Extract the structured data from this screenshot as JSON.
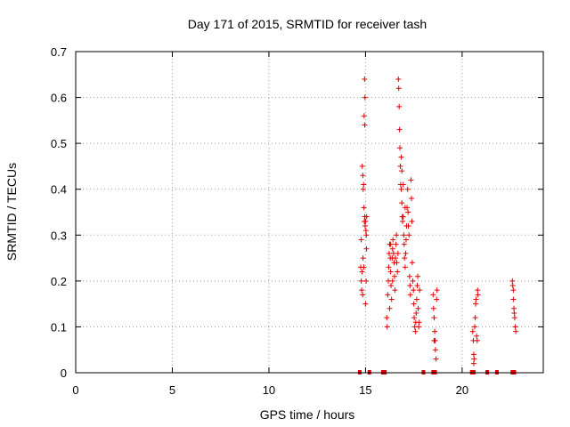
{
  "chart_data": {
    "type": "scatter",
    "title": "Day 171 of 2015, SRMTID for receiver tash",
    "xlabel": "GPS time / hours",
    "ylabel": "SRMTID / TECUs",
    "xlim": [
      0,
      24.2
    ],
    "ylim": [
      0,
      0.7
    ],
    "x_ticks": [
      0,
      5,
      10,
      15,
      20
    ],
    "x_tick_labels": [
      "0",
      "5",
      "10",
      "15",
      "20"
    ],
    "y_ticks": [
      0,
      0.1,
      0.2,
      0.3,
      0.4,
      0.5,
      0.6,
      0.7
    ],
    "y_tick_labels": [
      "0",
      "0.1",
      "0.2",
      "0.3",
      "0.4",
      "0.5",
      "0.6",
      "0.7"
    ],
    "grid": true,
    "marker": "+",
    "color": "#e00000",
    "series": [
      {
        "name": "SRMTID",
        "points": [
          [
            14.75,
            0.23
          ],
          [
            14.78,
            0.2
          ],
          [
            14.8,
            0.18
          ],
          [
            14.82,
            0.22
          ],
          [
            14.85,
            0.17
          ],
          [
            14.87,
            0.25
          ],
          [
            14.78,
            0.29
          ],
          [
            14.83,
            0.45
          ],
          [
            14.86,
            0.43
          ],
          [
            14.88,
            0.4
          ],
          [
            14.9,
            0.41
          ],
          [
            14.92,
            0.36
          ],
          [
            14.94,
            0.33
          ],
          [
            14.96,
            0.34
          ],
          [
            14.98,
            0.32
          ],
          [
            15.0,
            0.33
          ],
          [
            15.02,
            0.31
          ],
          [
            15.04,
            0.3
          ],
          [
            15.06,
            0.34
          ],
          [
            14.95,
            0.64
          ],
          [
            14.97,
            0.6
          ],
          [
            14.93,
            0.56
          ],
          [
            14.96,
            0.54
          ],
          [
            15.0,
            0.15
          ],
          [
            15.03,
            0.2
          ],
          [
            15.05,
            0.27
          ],
          [
            14.91,
            0.23
          ],
          [
            16.1,
            0.12
          ],
          [
            16.12,
            0.1
          ],
          [
            16.15,
            0.17
          ],
          [
            16.18,
            0.2
          ],
          [
            16.2,
            0.23
          ],
          [
            16.22,
            0.26
          ],
          [
            16.25,
            0.28
          ],
          [
            16.28,
            0.25
          ],
          [
            16.3,
            0.22
          ],
          [
            16.32,
            0.19
          ],
          [
            16.35,
            0.16
          ],
          [
            16.38,
            0.25
          ],
          [
            16.4,
            0.27
          ],
          [
            16.42,
            0.29
          ],
          [
            16.45,
            0.26
          ],
          [
            16.48,
            0.24
          ],
          [
            16.5,
            0.21
          ],
          [
            16.52,
            0.18
          ],
          [
            16.55,
            0.25
          ],
          [
            16.58,
            0.28
          ],
          [
            16.6,
            0.3
          ],
          [
            16.62,
            0.24
          ],
          [
            16.65,
            0.22
          ],
          [
            16.68,
            0.26
          ],
          [
            16.7,
            0.64
          ],
          [
            16.72,
            0.62
          ],
          [
            16.74,
            0.58
          ],
          [
            16.76,
            0.53
          ],
          [
            16.78,
            0.49
          ],
          [
            16.8,
            0.45
          ],
          [
            16.82,
            0.41
          ],
          [
            16.85,
            0.4
          ],
          [
            16.88,
            0.37
          ],
          [
            16.9,
            0.34
          ],
          [
            16.92,
            0.33
          ],
          [
            16.95,
            0.34
          ],
          [
            16.98,
            0.3
          ],
          [
            17.0,
            0.28
          ],
          [
            17.02,
            0.25
          ],
          [
            17.05,
            0.23
          ],
          [
            17.08,
            0.26
          ],
          [
            17.1,
            0.29
          ],
          [
            17.12,
            0.32
          ],
          [
            17.15,
            0.36
          ],
          [
            17.18,
            0.4
          ],
          [
            17.2,
            0.35
          ],
          [
            17.22,
            0.32
          ],
          [
            17.25,
            0.3
          ],
          [
            17.28,
            0.21
          ],
          [
            17.3,
            0.19
          ],
          [
            17.32,
            0.17
          ],
          [
            17.35,
            0.42
          ],
          [
            17.38,
            0.38
          ],
          [
            17.4,
            0.33
          ],
          [
            17.42,
            0.24
          ],
          [
            17.45,
            0.2
          ],
          [
            17.48,
            0.18
          ],
          [
            17.5,
            0.15
          ],
          [
            17.52,
            0.12
          ],
          [
            17.55,
            0.1
          ],
          [
            17.58,
            0.09
          ],
          [
            17.6,
            0.11
          ],
          [
            17.62,
            0.13
          ],
          [
            17.65,
            0.16
          ],
          [
            17.68,
            0.19
          ],
          [
            17.7,
            0.21
          ],
          [
            17.72,
            0.14
          ],
          [
            17.75,
            0.1
          ],
          [
            17.78,
            0.11
          ],
          [
            17.8,
            0.18
          ],
          [
            16.85,
            0.47
          ],
          [
            16.88,
            0.44
          ],
          [
            16.95,
            0.41
          ],
          [
            17.05,
            0.36
          ],
          [
            16.3,
            0.28
          ],
          [
            16.4,
            0.2
          ],
          [
            16.25,
            0.14
          ],
          [
            18.5,
            0.17
          ],
          [
            18.52,
            0.14
          ],
          [
            18.55,
            0.12
          ],
          [
            18.58,
            0.09
          ],
          [
            18.6,
            0.07
          ],
          [
            18.62,
            0.05
          ],
          [
            18.65,
            0.03
          ],
          [
            18.68,
            0.16
          ],
          [
            18.7,
            0.18
          ],
          [
            18.55,
            0.07
          ],
          [
            20.55,
            0.09
          ],
          [
            20.58,
            0.07
          ],
          [
            20.6,
            0.04
          ],
          [
            20.62,
            0.03
          ],
          [
            20.65,
            0.1
          ],
          [
            20.68,
            0.12
          ],
          [
            20.7,
            0.15
          ],
          [
            20.72,
            0.16
          ],
          [
            20.75,
            0.08
          ],
          [
            20.78,
            0.07
          ],
          [
            20.8,
            0.18
          ],
          [
            20.82,
            0.17
          ],
          [
            20.6,
            0.02
          ],
          [
            22.6,
            0.2
          ],
          [
            22.62,
            0.19
          ],
          [
            22.65,
            0.18
          ],
          [
            22.68,
            0.14
          ],
          [
            22.7,
            0.13
          ],
          [
            22.72,
            0.12
          ],
          [
            22.75,
            0.1
          ],
          [
            22.78,
            0.09
          ],
          [
            22.65,
            0.16
          ]
        ]
      }
    ],
    "zero_markers": [
      14.7,
      15.2,
      15.9,
      16.0,
      18.0,
      18.5,
      18.6,
      20.5,
      20.6,
      21.3,
      21.8,
      22.6,
      22.7
    ]
  }
}
